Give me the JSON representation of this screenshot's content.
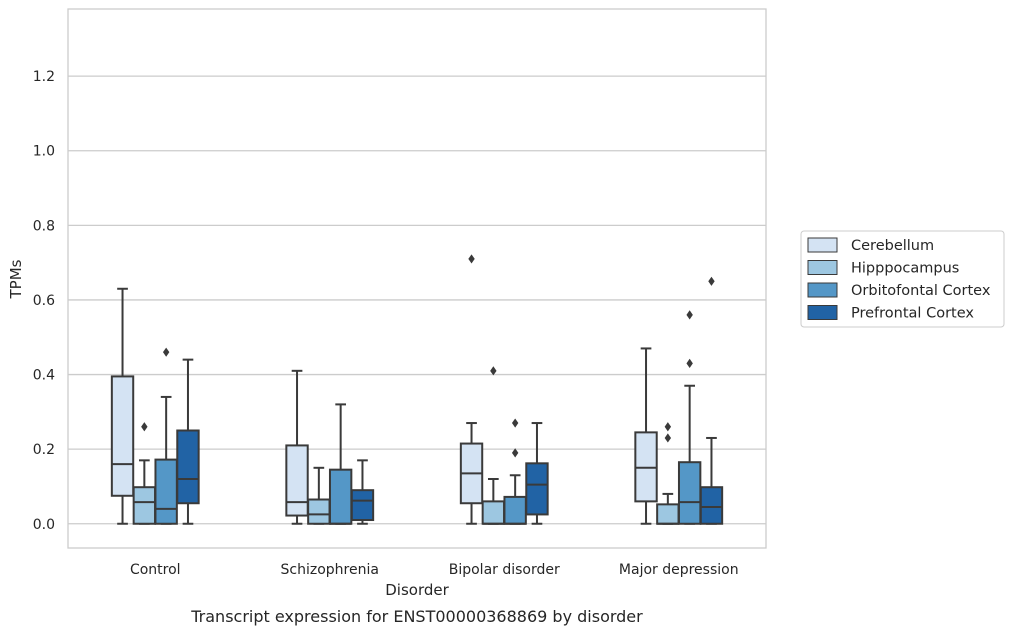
{
  "chart_data": {
    "type": "box",
    "caption": "Transcript expression for ENST00000368869 by disorder",
    "xlabel": "Disorder",
    "ylabel": "TPMs",
    "ylim": [
      -0.065,
      1.38
    ],
    "yticks": [
      0.0,
      0.2,
      0.4,
      0.6,
      0.8,
      1.0,
      1.2
    ],
    "ytick_labels": [
      "0.0",
      "0.2",
      "0.4",
      "0.6",
      "0.8",
      "1.0",
      "1.2"
    ],
    "grid": "horizontal",
    "legend_position": "right",
    "categories": [
      "Control",
      "Schizophrenia",
      "Bipolar disorder",
      "Major depression"
    ],
    "series": [
      {
        "name": "Cerebellum",
        "color": "#d4e3f3",
        "boxes": [
          {
            "whisker_low": 0.0,
            "q1": 0.075,
            "median": 0.16,
            "q3": 0.395,
            "whisker_high": 0.63,
            "outliers": []
          },
          {
            "whisker_low": 0.0,
            "q1": 0.022,
            "median": 0.058,
            "q3": 0.21,
            "whisker_high": 0.41,
            "outliers": []
          },
          {
            "whisker_low": 0.0,
            "q1": 0.055,
            "median": 0.135,
            "q3": 0.215,
            "whisker_high": 0.27,
            "outliers": [
              0.71
            ]
          },
          {
            "whisker_low": 0.0,
            "q1": 0.06,
            "median": 0.15,
            "q3": 0.245,
            "whisker_high": 0.47,
            "outliers": []
          }
        ]
      },
      {
        "name": "Hipppocampus",
        "color": "#9dc7e1",
        "boxes": [
          {
            "whisker_low": 0.0,
            "q1": 0.0,
            "median": 0.058,
            "q3": 0.098,
            "whisker_high": 0.17,
            "outliers": [
              0.26
            ]
          },
          {
            "whisker_low": 0.0,
            "q1": 0.0,
            "median": 0.025,
            "q3": 0.065,
            "whisker_high": 0.15,
            "outliers": []
          },
          {
            "whisker_low": 0.0,
            "q1": 0.0,
            "median": 0.0,
            "q3": 0.06,
            "whisker_high": 0.12,
            "outliers": [
              0.41
            ]
          },
          {
            "whisker_low": 0.0,
            "q1": 0.0,
            "median": 0.0,
            "q3": 0.052,
            "whisker_high": 0.08,
            "outliers": [
              0.23,
              0.26
            ]
          }
        ]
      },
      {
        "name": "Orbitofontal Cortex",
        "color": "#5497c7",
        "boxes": [
          {
            "whisker_low": 0.0,
            "q1": 0.0,
            "median": 0.04,
            "q3": 0.172,
            "whisker_high": 0.34,
            "outliers": [
              0.46
            ]
          },
          {
            "whisker_low": 0.0,
            "q1": 0.0,
            "median": 0.0,
            "q3": 0.145,
            "whisker_high": 0.32,
            "outliers": []
          },
          {
            "whisker_low": 0.0,
            "q1": 0.0,
            "median": 0.0,
            "q3": 0.072,
            "whisker_high": 0.13,
            "outliers": [
              0.19,
              0.27
            ]
          },
          {
            "whisker_low": 0.0,
            "q1": 0.0,
            "median": 0.058,
            "q3": 0.165,
            "whisker_high": 0.37,
            "outliers": [
              0.43,
              0.56
            ]
          }
        ]
      },
      {
        "name": "Prefrontal Cortex",
        "color": "#2163a5",
        "boxes": [
          {
            "whisker_low": 0.0,
            "q1": 0.055,
            "median": 0.12,
            "q3": 0.25,
            "whisker_high": 0.44,
            "outliers": []
          },
          {
            "whisker_low": 0.0,
            "q1": 0.01,
            "median": 0.062,
            "q3": 0.09,
            "whisker_high": 0.17,
            "outliers": []
          },
          {
            "whisker_low": 0.0,
            "q1": 0.025,
            "median": 0.105,
            "q3": 0.162,
            "whisker_high": 0.27,
            "outliers": []
          },
          {
            "whisker_low": 0.0,
            "q1": 0.0,
            "median": 0.045,
            "q3": 0.098,
            "whisker_high": 0.23,
            "outliers": [
              0.65
            ]
          }
        ]
      }
    ]
  },
  "colors": {
    "grid": "#cccccc",
    "frame": "#cccccc",
    "box_edge": "#3a3a3a",
    "legend_border": "#cccccc"
  }
}
